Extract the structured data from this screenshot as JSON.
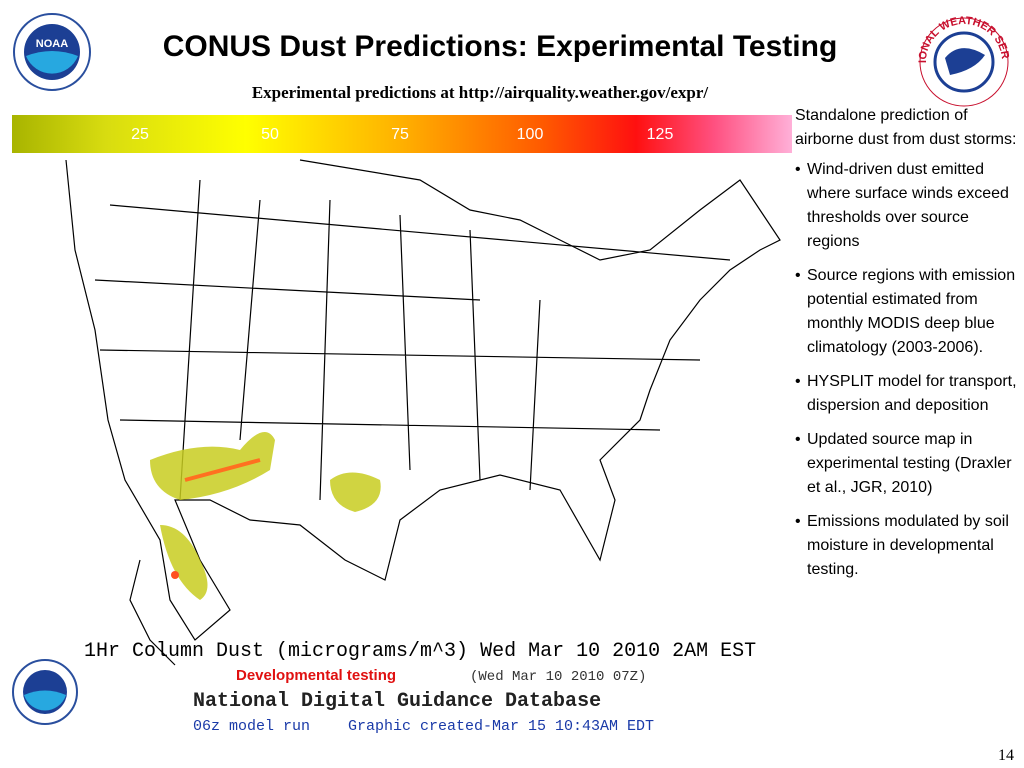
{
  "header": {
    "title": "CONUS Dust Predictions: Experimental Testing",
    "subtitle": "Experimental predictions at http://airquality.weather.gov/expr/",
    "logos": {
      "noaa": "NOAA",
      "nws": "NATIONAL WEATHER SERVICE"
    }
  },
  "colorbar": {
    "ticks": [
      25,
      50,
      75,
      100,
      125
    ]
  },
  "map": {
    "caption": "1Hr Column Dust (micrograms/m^3) Wed Mar 10 2010  2AM EST",
    "dev_label": "Developmental testing",
    "time_utc": "(Wed Mar 10 2010 07Z)",
    "database": "National Digital Guidance Database",
    "model_run": "06z model run",
    "created": "Graphic created-Mar 15 10:43AM EDT"
  },
  "sidebar": {
    "intro": "Standalone prediction of airborne dust from dust storms:",
    "bullets": [
      "Wind-driven dust emitted where surface winds exceed thresholds over source regions",
      "Source regions with emission potential estimated from monthly MODIS deep blue climatology (2003-2006).",
      "HYSPLIT model for transport, dispersion and deposition",
      "Updated source map in experimental testing (Draxler et al., JGR, 2010)",
      "Emissions modulated by soil moisture in developmental testing."
    ]
  },
  "footer": {
    "page_number": 14
  }
}
